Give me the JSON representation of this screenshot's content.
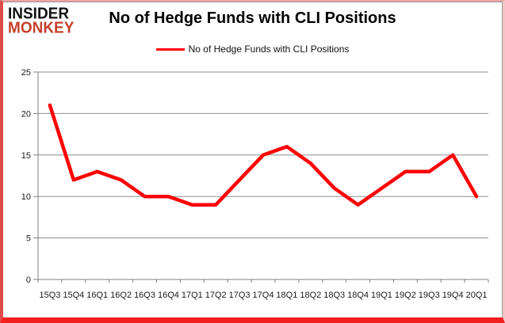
{
  "brand": {
    "line1": "INSIDER",
    "line2": "MONKEY"
  },
  "legend": {
    "swatch_color": "#ff0000"
  },
  "colors": {
    "line": "#ff0000",
    "gridline": "#8e8e8e",
    "axis": "#7f7f7f",
    "tick_label": "#1a1a1a",
    "logo_red": "#c4402e",
    "frame_red": "#f32020"
  },
  "chart_data": {
    "type": "line",
    "title": "No of Hedge Funds with CLI Positions",
    "categories": [
      "15Q3",
      "15Q4",
      "16Q1",
      "16Q2",
      "16Q3",
      "16Q4",
      "17Q1",
      "17Q2",
      "17Q3",
      "17Q4",
      "18Q1",
      "18Q2",
      "18Q3",
      "18Q4",
      "19Q1",
      "19Q2",
      "19Q3",
      "19Q4",
      "20Q1"
    ],
    "series": [
      {
        "name": "No of Hedge Funds with CLI Positions",
        "color": "#ff0000",
        "values": [
          21,
          12,
          13,
          12,
          10,
          10,
          9,
          9,
          12,
          15,
          16,
          14,
          11,
          9,
          11,
          13,
          13,
          15,
          10
        ]
      }
    ],
    "xlabel": "",
    "ylabel": "",
    "ylim": [
      0,
      25
    ],
    "yticks": [
      0,
      5,
      10,
      15,
      20,
      25
    ],
    "grid": true,
    "legend_position": "top-center"
  }
}
